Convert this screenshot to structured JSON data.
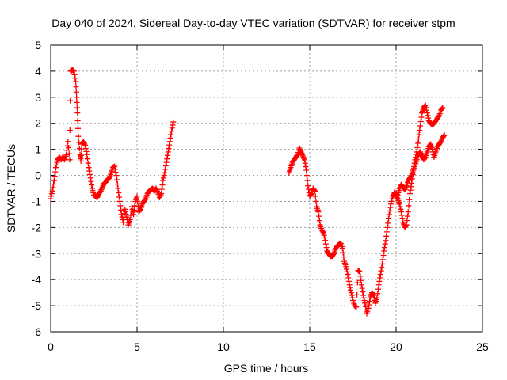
{
  "chart_data": {
    "type": "scatter",
    "title": "Day 040 of 2024, Sidereal Day-to-day VTEC variation (SDTVAR) for receiver stpm",
    "xlabel": "GPS time / hours",
    "ylabel": "SDTVAR / TECUs",
    "xlim": [
      0,
      25
    ],
    "ylim": [
      -6,
      5
    ],
    "xticks": [
      "0",
      "5",
      "10",
      "15",
      "20",
      "25"
    ],
    "yticks": [
      "-6",
      "-5",
      "-4",
      "-3",
      "-2",
      "-1",
      "0",
      "1",
      "2",
      "3",
      "4",
      "5"
    ],
    "grid": true,
    "marker": "plus",
    "color": "#ff0000",
    "series": [
      {
        "values": [
          [
            0.0,
            -0.9
          ],
          [
            0.1,
            -0.6
          ],
          [
            0.2,
            -0.2
          ],
          [
            0.3,
            0.3
          ],
          [
            0.4,
            0.6
          ],
          [
            0.5,
            0.7
          ],
          [
            0.6,
            0.6
          ],
          [
            0.7,
            0.7
          ],
          [
            0.8,
            0.6
          ],
          [
            0.9,
            0.8
          ],
          [
            1.0,
            1.3
          ],
          [
            1.1,
            0.6
          ],
          [
            1.15,
            4.0
          ],
          [
            1.25,
            4.05
          ],
          [
            1.35,
            4.0
          ],
          [
            1.45,
            3.6
          ],
          [
            1.5,
            3.0
          ],
          [
            1.55,
            2.4
          ],
          [
            1.6,
            1.5
          ],
          [
            1.7,
            0.8
          ],
          [
            1.75,
            0.55
          ],
          [
            1.8,
            1.2
          ],
          [
            1.9,
            1.3
          ],
          [
            2.0,
            1.15
          ],
          [
            2.1,
            0.8
          ],
          [
            2.2,
            0.3
          ],
          [
            2.3,
            -0.1
          ],
          [
            2.4,
            -0.5
          ],
          [
            2.5,
            -0.75
          ],
          [
            2.6,
            -0.8
          ],
          [
            2.7,
            -0.85
          ],
          [
            2.8,
            -0.7
          ],
          [
            2.9,
            -0.6
          ],
          [
            3.0,
            -0.45
          ],
          [
            3.1,
            -0.3
          ],
          [
            3.2,
            -0.25
          ],
          [
            3.3,
            -0.15
          ],
          [
            3.4,
            -0.1
          ],
          [
            3.5,
            0.1
          ],
          [
            3.6,
            0.3
          ],
          [
            3.7,
            0.35
          ],
          [
            3.8,
            0.0
          ],
          [
            3.9,
            -0.5
          ],
          [
            4.0,
            -1.0
          ],
          [
            4.1,
            -1.5
          ],
          [
            4.2,
            -1.8
          ],
          [
            4.3,
            -1.3
          ],
          [
            4.4,
            -1.6
          ],
          [
            4.5,
            -1.9
          ],
          [
            4.6,
            -1.7
          ],
          [
            4.7,
            -1.2
          ],
          [
            4.8,
            -1.5
          ],
          [
            4.9,
            -1.0
          ],
          [
            5.0,
            -0.8
          ],
          [
            5.1,
            -1.4
          ],
          [
            5.2,
            -1.3
          ],
          [
            5.3,
            -1.1
          ],
          [
            5.4,
            -1.0
          ],
          [
            5.5,
            -0.9
          ],
          [
            5.6,
            -0.7
          ],
          [
            5.7,
            -0.6
          ],
          [
            5.8,
            -0.55
          ],
          [
            5.9,
            -0.5
          ],
          [
            6.0,
            -0.6
          ],
          [
            6.1,
            -0.5
          ],
          [
            6.2,
            -0.65
          ],
          [
            6.3,
            -0.85
          ],
          [
            6.4,
            -0.7
          ],
          [
            6.5,
            -0.2
          ],
          [
            6.6,
            0.1
          ],
          [
            6.7,
            0.5
          ],
          [
            6.8,
            0.9
          ],
          [
            6.9,
            1.3
          ],
          [
            7.0,
            1.7
          ],
          [
            7.1,
            2.05
          ]
        ]
      },
      {
        "values": [
          [
            13.8,
            0.1
          ],
          [
            13.9,
            0.3
          ],
          [
            14.0,
            0.5
          ],
          [
            14.1,
            0.6
          ],
          [
            14.2,
            0.7
          ],
          [
            14.3,
            0.8
          ],
          [
            14.4,
            1.05
          ],
          [
            14.5,
            0.9
          ],
          [
            14.6,
            0.75
          ],
          [
            14.7,
            0.6
          ],
          [
            14.8,
            0.2
          ],
          [
            14.9,
            -0.4
          ],
          [
            15.0,
            -0.8
          ],
          [
            15.1,
            -0.7
          ],
          [
            15.2,
            -0.5
          ],
          [
            15.3,
            -0.6
          ],
          [
            15.4,
            -1.2
          ],
          [
            15.5,
            -1.4
          ],
          [
            15.6,
            -1.9
          ],
          [
            15.7,
            -2.1
          ],
          [
            15.8,
            -2.2
          ],
          [
            15.9,
            -2.5
          ],
          [
            16.0,
            -2.9
          ],
          [
            16.1,
            -3.0
          ],
          [
            16.2,
            -3.1
          ],
          [
            16.3,
            -3.1
          ],
          [
            16.4,
            -3.0
          ],
          [
            16.5,
            -2.8
          ],
          [
            16.6,
            -2.7
          ],
          [
            16.7,
            -2.65
          ],
          [
            16.8,
            -2.6
          ],
          [
            16.9,
            -2.8
          ],
          [
            17.0,
            -3.3
          ],
          [
            17.1,
            -3.5
          ],
          [
            17.2,
            -3.8
          ],
          [
            17.3,
            -4.2
          ],
          [
            17.4,
            -4.5
          ],
          [
            17.5,
            -4.8
          ],
          [
            17.6,
            -5.0
          ],
          [
            17.7,
            -5.05
          ],
          [
            17.8,
            -3.65
          ],
          [
            17.9,
            -3.7
          ],
          [
            18.0,
            -4.2
          ],
          [
            18.1,
            -4.6
          ],
          [
            18.2,
            -4.9
          ],
          [
            18.3,
            -5.3
          ],
          [
            18.4,
            -5.1
          ],
          [
            18.5,
            -4.7
          ],
          [
            18.6,
            -4.5
          ],
          [
            18.7,
            -4.6
          ],
          [
            18.8,
            -4.9
          ],
          [
            18.9,
            -4.7
          ],
          [
            19.0,
            -4.2
          ],
          [
            19.1,
            -3.8
          ],
          [
            19.2,
            -3.4
          ],
          [
            19.3,
            -2.9
          ],
          [
            19.4,
            -2.5
          ],
          [
            19.5,
            -2.0
          ],
          [
            19.6,
            -1.5
          ],
          [
            19.7,
            -1.1
          ],
          [
            19.8,
            -0.8
          ],
          [
            19.9,
            -0.7
          ],
          [
            20.0,
            -0.8
          ],
          [
            20.1,
            -0.9
          ],
          [
            20.2,
            -1.1
          ],
          [
            20.3,
            -1.4
          ],
          [
            20.4,
            -1.8
          ],
          [
            20.5,
            -2.0
          ],
          [
            20.6,
            -1.9
          ],
          [
            20.7,
            -1.4
          ],
          [
            20.8,
            -0.7
          ],
          [
            20.9,
            -0.3
          ],
          [
            21.0,
            0.2
          ],
          [
            21.1,
            0.6
          ],
          [
            21.2,
            0.9
          ],
          [
            21.3,
            1.4
          ],
          [
            21.4,
            1.9
          ],
          [
            21.5,
            2.4
          ],
          [
            21.6,
            2.6
          ],
          [
            21.7,
            2.7
          ],
          [
            21.8,
            2.4
          ],
          [
            21.9,
            2.1
          ],
          [
            22.0,
            2.0
          ],
          [
            22.1,
            1.95
          ],
          [
            22.2,
            2.0
          ],
          [
            22.3,
            2.1
          ],
          [
            22.4,
            2.2
          ],
          [
            22.5,
            2.3
          ],
          [
            22.6,
            2.5
          ],
          [
            22.7,
            2.6
          ]
        ]
      },
      {
        "values": [
          [
            19.9,
            -0.65
          ],
          [
            20.0,
            -0.7
          ],
          [
            20.1,
            -0.75
          ],
          [
            20.2,
            -0.5
          ],
          [
            20.3,
            -0.35
          ],
          [
            20.4,
            -0.45
          ],
          [
            20.5,
            -0.55
          ],
          [
            20.6,
            -0.4
          ],
          [
            20.7,
            -0.2
          ],
          [
            20.8,
            -0.1
          ],
          [
            20.9,
            0.0
          ],
          [
            21.0,
            0.2
          ],
          [
            21.1,
            0.4
          ],
          [
            21.2,
            0.6
          ],
          [
            21.3,
            0.8
          ],
          [
            21.4,
            0.9
          ],
          [
            21.5,
            0.75
          ],
          [
            21.6,
            0.6
          ],
          [
            21.7,
            0.7
          ],
          [
            21.8,
            0.9
          ],
          [
            21.9,
            1.1
          ],
          [
            22.0,
            1.2
          ],
          [
            22.1,
            1.0
          ],
          [
            22.2,
            0.7
          ],
          [
            22.3,
            0.9
          ],
          [
            22.4,
            1.1
          ],
          [
            22.5,
            1.2
          ],
          [
            22.6,
            1.3
          ],
          [
            22.7,
            1.45
          ],
          [
            22.8,
            1.55
          ]
        ]
      }
    ]
  }
}
